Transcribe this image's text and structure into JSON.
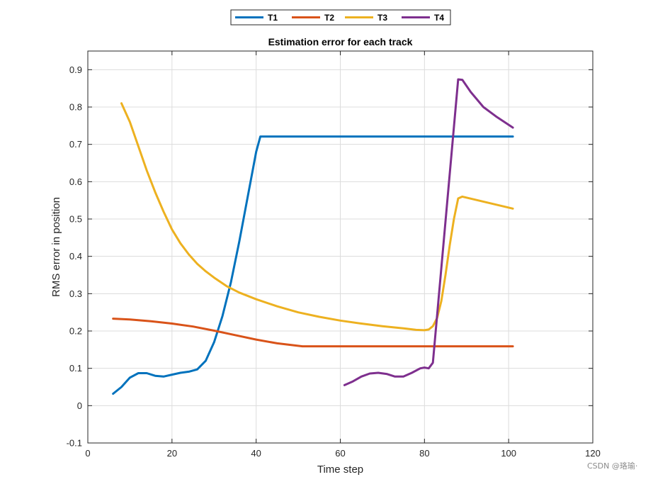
{
  "chart_data": {
    "type": "line",
    "title": "Estimation error for each track",
    "xlabel": "Time step",
    "ylabel": "RMS error in position",
    "xlim": [
      0,
      120
    ],
    "ylim": [
      -0.1,
      0.95
    ],
    "xticks": [
      0,
      20,
      40,
      60,
      80,
      100,
      120
    ],
    "yticks": [
      -0.1,
      0,
      0.1,
      0.2,
      0.3,
      0.4,
      0.5,
      0.6,
      0.7,
      0.8,
      0.9
    ],
    "xtick_labels": [
      "0",
      "20",
      "40",
      "60",
      "80",
      "100",
      "120"
    ],
    "ytick_labels": [
      "-0.1",
      "0",
      "0.1",
      "0.2",
      "0.3",
      "0.4",
      "0.5",
      "0.6",
      "0.7",
      "0.8",
      "0.9"
    ],
    "grid": true,
    "legend_position": "top-center",
    "series": [
      {
        "name": "T1",
        "color": "#0072BD",
        "x": [
          6,
          8,
          10,
          12,
          14,
          16,
          18,
          20,
          22,
          24,
          26,
          28,
          30,
          32,
          34,
          36,
          38,
          40,
          41,
          101
        ],
        "y": [
          0.032,
          0.05,
          0.075,
          0.087,
          0.087,
          0.08,
          0.078,
          0.083,
          0.088,
          0.091,
          0.097,
          0.12,
          0.17,
          0.24,
          0.33,
          0.44,
          0.56,
          0.68,
          0.721,
          0.721
        ]
      },
      {
        "name": "T2",
        "color": "#D95319",
        "x": [
          6,
          10,
          15,
          20,
          25,
          30,
          35,
          40,
          45,
          51,
          101
        ],
        "y": [
          0.233,
          0.231,
          0.226,
          0.22,
          0.212,
          0.201,
          0.189,
          0.177,
          0.167,
          0.159,
          0.159
        ]
      },
      {
        "name": "T3",
        "color": "#EDB120",
        "x": [
          8,
          10,
          12,
          14,
          16,
          18,
          20,
          22,
          24,
          26,
          28,
          30,
          33,
          36,
          40,
          45,
          50,
          55,
          60,
          65,
          70,
          75,
          78,
          80,
          81,
          82,
          83,
          84,
          85,
          86,
          87,
          88,
          89,
          101
        ],
        "y": [
          0.81,
          0.76,
          0.695,
          0.63,
          0.572,
          0.52,
          0.472,
          0.435,
          0.405,
          0.38,
          0.36,
          0.343,
          0.32,
          0.303,
          0.285,
          0.266,
          0.25,
          0.238,
          0.228,
          0.22,
          0.213,
          0.207,
          0.203,
          0.202,
          0.204,
          0.213,
          0.235,
          0.28,
          0.35,
          0.43,
          0.5,
          0.555,
          0.56,
          0.528
        ]
      },
      {
        "name": "T4",
        "color": "#7E2F8E",
        "x": [
          61,
          63,
          65,
          67,
          69,
          71,
          73,
          75,
          77,
          79,
          80,
          81,
          82,
          88,
          89,
          91,
          94,
          97,
          101
        ],
        "y": [
          0.055,
          0.065,
          0.078,
          0.086,
          0.088,
          0.085,
          0.078,
          0.078,
          0.088,
          0.1,
          0.102,
          0.1,
          0.115,
          0.874,
          0.873,
          0.84,
          0.8,
          0.775,
          0.745
        ]
      }
    ]
  },
  "watermark": "CSDN @珞瑜·"
}
